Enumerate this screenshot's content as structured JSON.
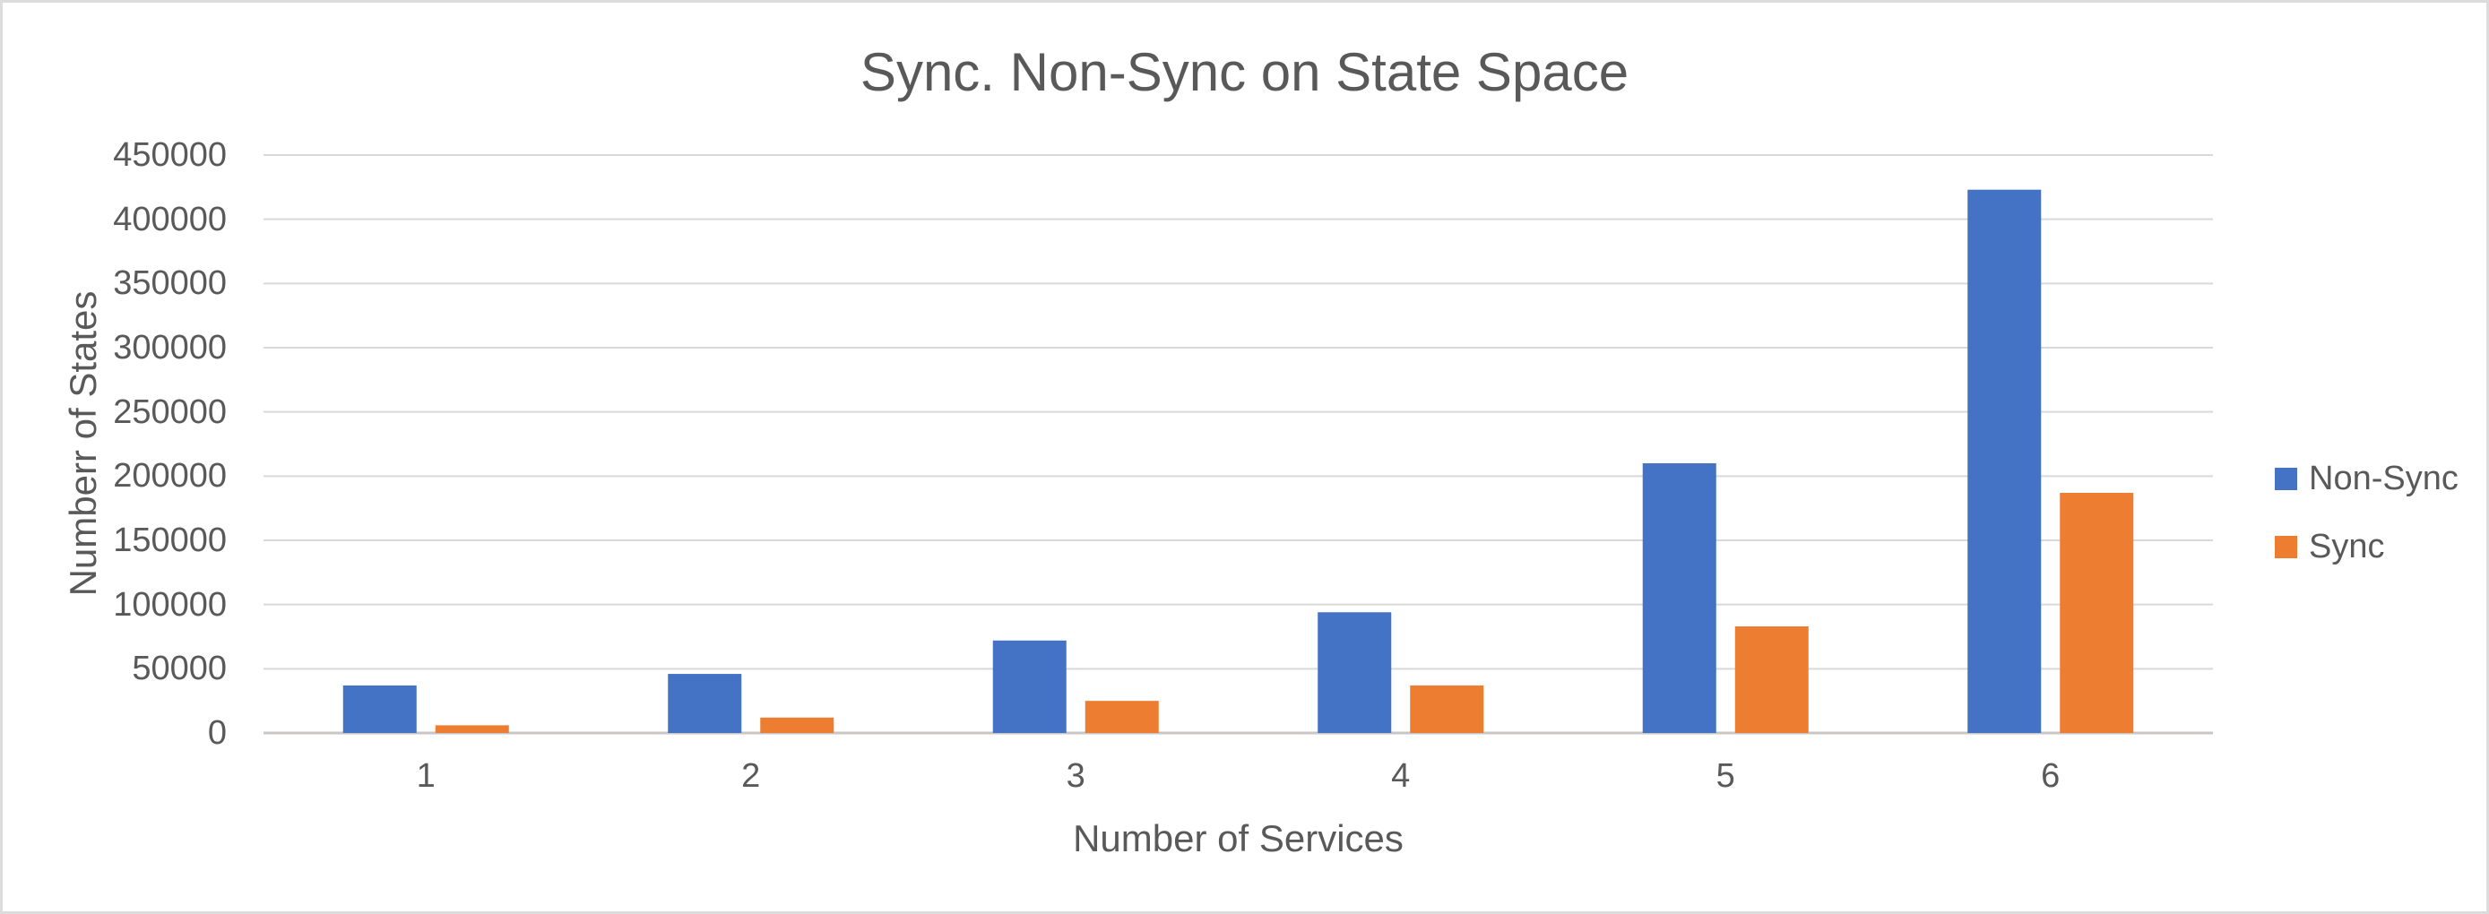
{
  "figure": {
    "background": "#ffffff",
    "border_color": "#dcdcdc",
    "text_color": "#595959"
  },
  "chart_data": {
    "type": "bar",
    "title": "Sync. Non-Sync on State Space",
    "xlabel": "Number of Services",
    "ylabel": "Numberr of States",
    "categories": [
      "1",
      "2",
      "3",
      "4",
      "5",
      "6"
    ],
    "series": [
      {
        "name": "Non-Sync",
        "color": "#4472C4",
        "values": [
          37000,
          46000,
          72000,
          94000,
          210000,
          423000
        ]
      },
      {
        "name": "Sync",
        "color": "#ED7D31",
        "values": [
          6000,
          12000,
          25000,
          37000,
          83000,
          187000
        ]
      }
    ],
    "ylim": [
      0,
      450000
    ],
    "ytick_step": 50000,
    "ytick_labels": [
      "0",
      "50000",
      "100000",
      "150000",
      "200000",
      "250000",
      "300000",
      "350000",
      "400000",
      "450000"
    ],
    "grid": "horizontal",
    "gridline_color": "#d9d9d9",
    "axisline_color": "#c9c7c5",
    "legend_position": "right"
  }
}
